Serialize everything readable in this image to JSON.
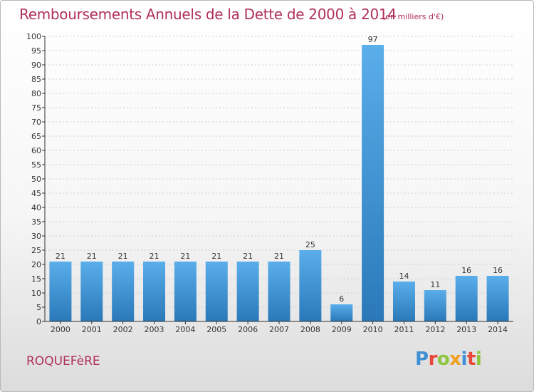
{
  "header": {
    "title": "Remboursements Annuels de la Dette de 2000 à 2014",
    "subtitle": "(en milliers d'€)"
  },
  "footer": {
    "commune": "ROQUEFèRE",
    "logo_text": "Proxiti"
  },
  "colors": {
    "title": "#b03058",
    "bar_light": "#5aaeea",
    "bar_dark": "#2a78b8",
    "grid": "#cfcfcf",
    "axis": "#333333",
    "logo": [
      "#3d8fd6",
      "#e8483a",
      "#8cc63f",
      "#f0a020",
      "#3d8fd6",
      "#e8483a",
      "#8cc63f"
    ]
  },
  "chart_data": {
    "type": "bar",
    "title": "Remboursements Annuels de la Dette de 2000 à 2014",
    "subtitle": "(en milliers d'€)",
    "xlabel": "",
    "ylabel": "",
    "categories": [
      "2000",
      "2001",
      "2002",
      "2003",
      "2004",
      "2005",
      "2006",
      "2007",
      "2008",
      "2009",
      "2010",
      "2011",
      "2012",
      "2013",
      "2014"
    ],
    "values": [
      21,
      21,
      21,
      21,
      21,
      21,
      21,
      21,
      25,
      6,
      97,
      14,
      11,
      16,
      16
    ],
    "ylim": [
      0,
      100
    ],
    "yticks": [
      0,
      5,
      10,
      15,
      20,
      25,
      30,
      35,
      40,
      45,
      50,
      55,
      60,
      65,
      70,
      75,
      80,
      85,
      90,
      95,
      100
    ],
    "grid": true,
    "legend": "none"
  }
}
